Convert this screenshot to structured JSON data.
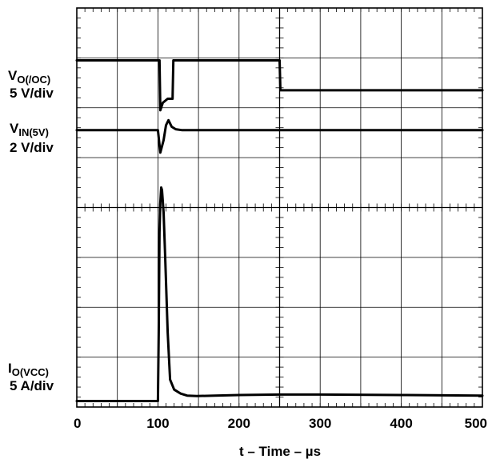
{
  "chart_data": {
    "type": "line",
    "xlabel": "t – Time – µs",
    "xlim": [
      0,
      500
    ],
    "x_ticks": [
      0,
      100,
      200,
      300,
      400,
      500
    ],
    "x_tick_labels": [
      "0",
      "100",
      "200",
      "300",
      "400",
      "500"
    ],
    "y_divisions": 8,
    "grid": true,
    "series": [
      {
        "name": "VO(/OC)",
        "label_main": "V",
        "label_sub": "O(/OC)",
        "scale": "5 V/div",
        "color": "#000000",
        "points": [
          [
            0,
            6.95
          ],
          [
            100,
            6.95
          ],
          [
            102,
            6.95
          ],
          [
            103,
            5.95
          ],
          [
            106,
            6.1
          ],
          [
            112,
            6.18
          ],
          [
            118,
            6.18
          ],
          [
            119,
            6.95
          ],
          [
            250,
            6.95
          ],
          [
            251,
            6.35
          ],
          [
            500,
            6.35
          ]
        ]
      },
      {
        "name": "VIN(5V)",
        "label_main": "V",
        "label_sub": "IN(5V)",
        "scale": "2 V/div",
        "color": "#000000",
        "points": [
          [
            0,
            5.55
          ],
          [
            100,
            5.55
          ],
          [
            103,
            5.1
          ],
          [
            107,
            5.35
          ],
          [
            110,
            5.65
          ],
          [
            113,
            5.75
          ],
          [
            117,
            5.62
          ],
          [
            122,
            5.57
          ],
          [
            130,
            5.55
          ],
          [
            500,
            5.55
          ]
        ]
      },
      {
        "name": "IO(VCC)",
        "label_main": "I",
        "label_sub": "O(VCC)",
        "scale": "5 A/div",
        "color": "#000000",
        "points": [
          [
            0,
            0.12
          ],
          [
            100,
            0.12
          ],
          [
            101,
            1.5
          ],
          [
            102,
            3.5
          ],
          [
            103,
            4.1
          ],
          [
            104,
            4.4
          ],
          [
            105,
            4.35
          ],
          [
            107,
            3.9
          ],
          [
            109,
            3.0
          ],
          [
            112,
            1.5
          ],
          [
            115,
            0.55
          ],
          [
            120,
            0.35
          ],
          [
            128,
            0.27
          ],
          [
            136,
            0.23
          ],
          [
            148,
            0.22
          ],
          [
            170,
            0.23
          ],
          [
            200,
            0.24
          ],
          [
            250,
            0.25
          ],
          [
            300,
            0.25
          ],
          [
            400,
            0.24
          ],
          [
            500,
            0.23
          ]
        ]
      }
    ]
  }
}
